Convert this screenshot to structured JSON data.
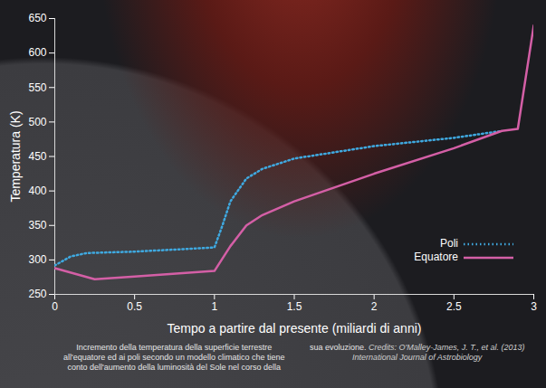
{
  "chart_data": {
    "type": "line",
    "caption": "Incremento della temperatura della superficie terrestre all'equatore ed ai poli secondo un modello climatico che tiene conto dell'aumento della luminosità del Sole nel corso della sua evoluzione.",
    "credits": "Credits: O'Malley-James, J. T., et al. (2013) International Journal of Astrobiology",
    "x_label": "Tempo a partire dal presente (miliardi di anni)",
    "y_label": "Temperatura (K)",
    "xlim": [
      0,
      3
    ],
    "xticks": [
      0,
      0.5,
      1,
      1.5,
      2,
      2.5,
      3
    ],
    "ylim": [
      250,
      650
    ],
    "yticks": [
      250,
      300,
      350,
      400,
      450,
      500,
      550,
      600,
      650
    ],
    "grid": false,
    "legend": "lower right",
    "series": [
      {
        "name": "Poli",
        "color": "#3fa9e0",
        "line_style": "dotted",
        "x": [
          0,
          0.1,
          0.2,
          0.5,
          1.0,
          1.05,
          1.1,
          1.2,
          1.3,
          1.5,
          2.0,
          2.5,
          2.8
        ],
        "values": [
          292,
          305,
          310,
          312,
          318,
          350,
          385,
          418,
          432,
          447,
          465,
          477,
          487
        ]
      },
      {
        "name": "Equatore",
        "color": "#d45fa6",
        "line_style": "solid",
        "x": [
          0,
          0.25,
          0.5,
          1.0,
          1.1,
          1.2,
          1.3,
          1.5,
          2.0,
          2.5,
          2.8,
          2.9,
          3.0
        ],
        "values": [
          288,
          272,
          276,
          284,
          320,
          350,
          365,
          385,
          425,
          462,
          487,
          490,
          640
        ]
      }
    ]
  }
}
